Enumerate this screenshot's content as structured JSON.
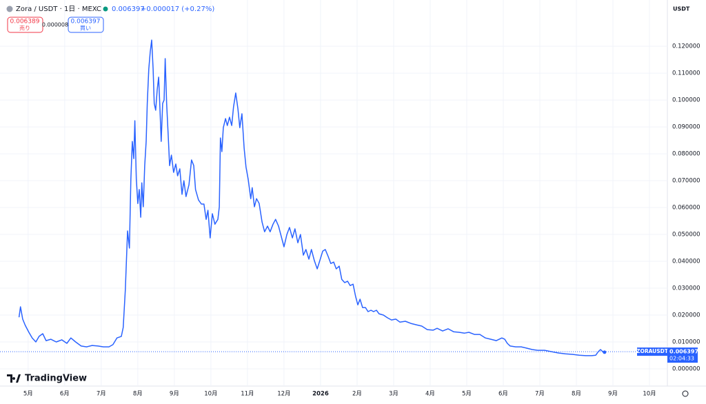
{
  "header": {
    "symbol": "Zora / USDT · 1日 · MEXC",
    "price": "0.006397",
    "change": "+0.000017 (+0.27%)",
    "sell_price": "0.006389",
    "sell_label": "売り",
    "spread": "0.000008",
    "buy_price": "0.006397",
    "buy_label": "買い"
  },
  "currency": "USDT",
  "logo": "TradingView",
  "chart_data": {
    "type": "line",
    "x": [
      -0.25,
      -0.21,
      -0.15,
      -0.08,
      0.02,
      0.11,
      0.21,
      0.3,
      0.4,
      0.49,
      0.62,
      0.77,
      0.92,
      1.06,
      1.17,
      1.3,
      1.45,
      1.6,
      1.75,
      1.91,
      2.06,
      2.21,
      2.32,
      2.43,
      2.55,
      2.6,
      2.66,
      2.72,
      2.77,
      2.81,
      2.85,
      2.89,
      2.92,
      2.96,
      3.0,
      3.04,
      3.08,
      3.11,
      3.15,
      3.19,
      3.23,
      3.26,
      3.3,
      3.34,
      3.38,
      3.42,
      3.45,
      3.49,
      3.53,
      3.57,
      3.6,
      3.64,
      3.68,
      3.72,
      3.75,
      3.79,
      3.83,
      3.87,
      3.92,
      3.98,
      4.04,
      4.09,
      4.15,
      4.21,
      4.26,
      4.32,
      4.4,
      4.47,
      4.53,
      4.58,
      4.66,
      4.74,
      4.81,
      4.87,
      4.92,
      4.98,
      5.04,
      5.11,
      5.19,
      5.23,
      5.26,
      5.3,
      5.34,
      5.4,
      5.45,
      5.51,
      5.57,
      5.62,
      5.68,
      5.74,
      5.79,
      5.85,
      5.91,
      5.96,
      6.02,
      6.09,
      6.13,
      6.19,
      6.25,
      6.32,
      6.4,
      6.47,
      6.55,
      6.62,
      6.7,
      6.77,
      6.85,
      6.92,
      7.0,
      7.08,
      7.15,
      7.23,
      7.3,
      7.38,
      7.45,
      7.53,
      7.6,
      7.68,
      7.75,
      7.83,
      7.91,
      7.98,
      8.06,
      8.13,
      8.21,
      8.28,
      8.36,
      8.43,
      8.51,
      8.58,
      8.66,
      8.74,
      8.81,
      8.89,
      8.96,
      9.02,
      9.08,
      9.15,
      9.23,
      9.3,
      9.38,
      9.45,
      9.53,
      9.6,
      9.72,
      9.83,
      9.94,
      10.06,
      10.17,
      10.32,
      10.47,
      10.62,
      10.77,
      10.92,
      11.08,
      11.19,
      11.34,
      11.49,
      11.64,
      11.79,
      11.94,
      12.06,
      12.21,
      12.36,
      12.51,
      12.66,
      12.81,
      12.96,
      13.04,
      13.11,
      13.19,
      13.34,
      13.49,
      13.64,
      13.79,
      13.94,
      14.13,
      14.32,
      14.51,
      14.7,
      14.89,
      15.08,
      15.26,
      15.42,
      15.53,
      15.6,
      15.66,
      15.72,
      15.77
    ],
    "series": [
      {
        "name": "ZORAUSDT",
        "color": "#2962ff",
        "values": [
          0.0192,
          0.0231,
          0.0185,
          0.0162,
          0.0136,
          0.0115,
          0.01,
          0.0121,
          0.0131,
          0.0105,
          0.011,
          0.01,
          0.0108,
          0.0095,
          0.0115,
          0.01,
          0.0085,
          0.0082,
          0.0087,
          0.0085,
          0.0082,
          0.0082,
          0.009,
          0.0115,
          0.0121,
          0.0154,
          0.0295,
          0.0513,
          0.0449,
          0.0705,
          0.0846,
          0.0782,
          0.0923,
          0.0705,
          0.0615,
          0.0667,
          0.0564,
          0.0692,
          0.0603,
          0.0756,
          0.0846,
          0.0987,
          0.1115,
          0.1179,
          0.1223,
          0.1115,
          0.0987,
          0.0962,
          0.1038,
          0.1085,
          0.0987,
          0.0846,
          0.0987,
          0.1,
          0.1154,
          0.0987,
          0.0872,
          0.0756,
          0.0795,
          0.0731,
          0.0762,
          0.0718,
          0.0744,
          0.0649,
          0.07,
          0.0641,
          0.0685,
          0.0777,
          0.0756,
          0.0667,
          0.0628,
          0.0613,
          0.0613,
          0.0556,
          0.059,
          0.0487,
          0.0577,
          0.0538,
          0.0556,
          0.0603,
          0.0859,
          0.0808,
          0.0897,
          0.0931,
          0.0905,
          0.0936,
          0.0905,
          0.0974,
          0.1026,
          0.0967,
          0.0897,
          0.0949,
          0.0821,
          0.0751,
          0.0705,
          0.0633,
          0.0674,
          0.0603,
          0.0633,
          0.0615,
          0.0546,
          0.051,
          0.0531,
          0.051,
          0.0538,
          0.0556,
          0.0531,
          0.0495,
          0.0454,
          0.05,
          0.0526,
          0.0487,
          0.0521,
          0.0469,
          0.05,
          0.0423,
          0.0444,
          0.0408,
          0.0444,
          0.0403,
          0.0372,
          0.0403,
          0.0438,
          0.0444,
          0.0418,
          0.0392,
          0.0397,
          0.0372,
          0.0382,
          0.0333,
          0.0321,
          0.0326,
          0.031,
          0.0315,
          0.0269,
          0.0238,
          0.0259,
          0.0228,
          0.0228,
          0.0213,
          0.0218,
          0.0213,
          0.0218,
          0.0205,
          0.02,
          0.019,
          0.0182,
          0.0185,
          0.0174,
          0.0177,
          0.0169,
          0.0164,
          0.0159,
          0.0146,
          0.0144,
          0.0151,
          0.0141,
          0.0149,
          0.0138,
          0.0136,
          0.0133,
          0.0136,
          0.0128,
          0.0128,
          0.0115,
          0.011,
          0.0105,
          0.0115,
          0.011,
          0.0095,
          0.0085,
          0.0082,
          0.0082,
          0.0077,
          0.0072,
          0.0069,
          0.0069,
          0.0064,
          0.0059,
          0.0056,
          0.0054,
          0.0051,
          0.0049,
          0.0049,
          0.0051,
          0.0064,
          0.0072,
          0.0064,
          0.0062
        ]
      }
    ],
    "price_line": {
      "value": 0.006397,
      "label": "0.006397",
      "countdown": "02:04:33"
    },
    "xlim": [
      -0.77,
      17.49
    ],
    "xticks": [
      {
        "value": 0,
        "label": "5月"
      },
      {
        "value": 1,
        "label": "6月"
      },
      {
        "value": 2,
        "label": "7月"
      },
      {
        "value": 3,
        "label": "8月"
      },
      {
        "value": 4,
        "label": "9月"
      },
      {
        "value": 5,
        "label": "10月"
      },
      {
        "value": 6,
        "label": "11月"
      },
      {
        "value": 7,
        "label": "12月"
      },
      {
        "value": 8,
        "label": "2026"
      },
      {
        "value": 9,
        "label": "2月"
      },
      {
        "value": 10,
        "label": "3月"
      },
      {
        "value": 11,
        "label": "4月"
      },
      {
        "value": 12,
        "label": "5月"
      },
      {
        "value": 13,
        "label": "6月"
      },
      {
        "value": 14,
        "label": "7月"
      },
      {
        "value": 15,
        "label": "8月"
      },
      {
        "value": 16,
        "label": "9月"
      },
      {
        "value": 17,
        "label": "10月"
      }
    ],
    "ylim": [
      -0.0064,
      0.1372
    ],
    "yticks": [
      {
        "value": 0,
        "label": "0.000000"
      },
      {
        "value": 0.01,
        "label": "0.010000"
      },
      {
        "value": 0.02,
        "label": "0.020000"
      },
      {
        "value": 0.03,
        "label": "0.030000"
      },
      {
        "value": 0.04,
        "label": "0.040000"
      },
      {
        "value": 0.05,
        "label": "0.050000"
      },
      {
        "value": 0.06,
        "label": "0.060000"
      },
      {
        "value": 0.07,
        "label": "0.070000"
      },
      {
        "value": 0.08,
        "label": "0.080000"
      },
      {
        "value": 0.09,
        "label": "0.090000"
      },
      {
        "value": 0.1,
        "label": "0.100000"
      },
      {
        "value": 0.11,
        "label": "0.110000"
      },
      {
        "value": 0.12,
        "label": "0.120000"
      }
    ],
    "grid": true
  }
}
